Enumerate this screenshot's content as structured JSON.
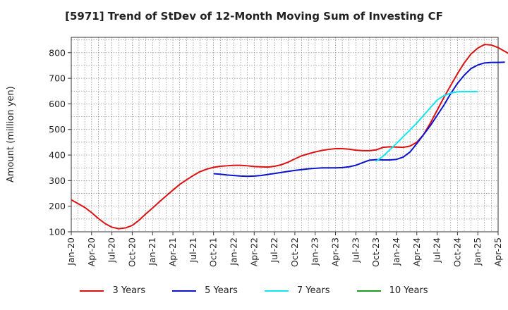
{
  "chart_data": {
    "type": "line",
    "title": "[5971]  Trend of StDev of 12-Month Moving Sum of Investing CF",
    "xlabel": "",
    "ylabel": "Amount (million yen)",
    "ylim": [
      100,
      860
    ],
    "yticks": [
      100,
      200,
      300,
      400,
      500,
      600,
      700,
      800
    ],
    "xlim": [
      "Jan-20",
      "Apr-25"
    ],
    "xticks": [
      "Jan-20",
      "Apr-20",
      "Jul-20",
      "Oct-20",
      "Jan-21",
      "Apr-21",
      "Jul-21",
      "Oct-21",
      "Jan-22",
      "Apr-22",
      "Jul-22",
      "Oct-22",
      "Jan-23",
      "Apr-23",
      "Jul-23",
      "Oct-23",
      "Jan-24",
      "Apr-24",
      "Jul-24",
      "Oct-24",
      "Jan-25",
      "Apr-25"
    ],
    "grid": true,
    "legend_position": "bottom",
    "series": [
      {
        "name": "3 Years",
        "color": "#dd1111",
        "start": "Jan-20",
        "values": [
          225,
          210,
          195,
          175,
          152,
          132,
          118,
          112,
          115,
          125,
          145,
          170,
          193,
          217,
          240,
          263,
          285,
          303,
          320,
          335,
          345,
          352,
          356,
          358,
          360,
          360,
          358,
          355,
          354,
          353,
          356,
          362,
          372,
          385,
          397,
          405,
          412,
          418,
          422,
          425,
          425,
          423,
          419,
          417,
          417,
          420,
          430,
          432,
          431,
          430,
          435,
          450,
          480,
          525,
          575,
          625,
          672,
          718,
          760,
          795,
          818,
          832,
          830,
          820,
          805,
          790,
          778
        ]
      },
      {
        "name": "5 Years",
        "color": "#0a14cc",
        "start": "Oct-21",
        "values": [
          327,
          325,
          322,
          320,
          318,
          317,
          318,
          320,
          324,
          328,
          332,
          336,
          340,
          343,
          346,
          348,
          350,
          350,
          350,
          351,
          354,
          360,
          370,
          380,
          382,
          381,
          381,
          383,
          392,
          412,
          445,
          480,
          515,
          555,
          595,
          640,
          680,
          712,
          738,
          752,
          760,
          762,
          762,
          763
        ]
      },
      {
        "name": "7 Years",
        "color": "#11e6ee",
        "start": "Oct-23",
        "values": [
          376,
          395,
          420,
          445,
          472,
          498,
          525,
          555,
          585,
          615,
          632,
          642,
          647,
          648,
          648,
          648
        ]
      },
      {
        "name": "10 Years",
        "color": "#229922",
        "start": "Oct-23",
        "values": []
      }
    ]
  }
}
